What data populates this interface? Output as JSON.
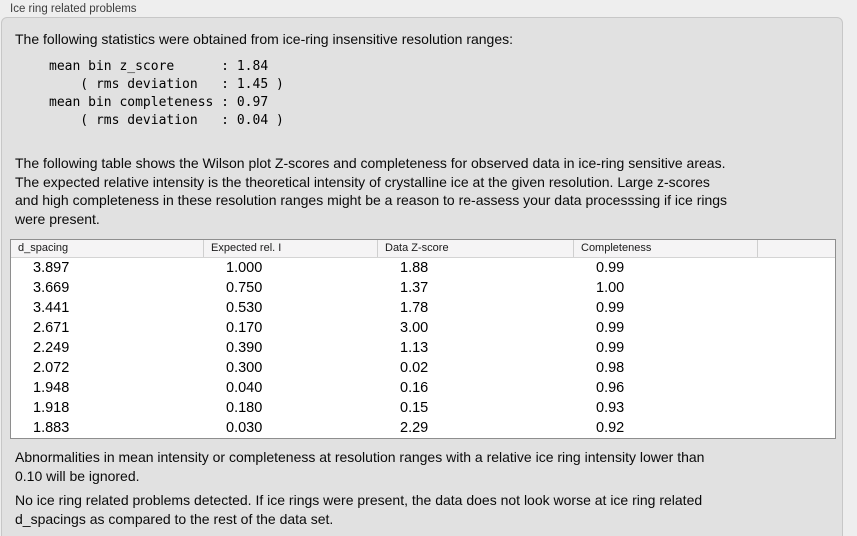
{
  "window": {
    "title": "Ice ring related problems"
  },
  "panel": {
    "intro": "The following statistics were obtained from ice-ring insensitive resolution ranges:",
    "stats_block": "mean bin z_score      : 1.84\n    ( rms deviation   : 1.45 )\nmean bin completeness : 0.97\n    ( rms deviation   : 0.04 )",
    "stats": {
      "mean_bin_z_score": "1.84",
      "z_score_rms_deviation": "1.45",
      "mean_bin_completeness": "0.97",
      "completeness_rms_deviation": "0.04"
    },
    "table_description": "The following table shows the Wilson plot Z-scores and completeness for observed data in ice-ring sensitive areas.\nThe expected relative intensity is the theoretical intensity of crystalline ice at the given resolution. Large z-scores\nand high completeness in these resolution ranges might be a reason to re-assess your data processsing if ice rings\nwere present.",
    "table": {
      "columns": [
        "d_spacing",
        "Expected rel. I",
        "Data Z-score",
        "Completeness",
        ""
      ],
      "rows": [
        [
          "3.897",
          "1.000",
          "1.88",
          "0.99"
        ],
        [
          "3.669",
          "0.750",
          "1.37",
          "1.00"
        ],
        [
          "3.441",
          "0.530",
          "1.78",
          "0.99"
        ],
        [
          "2.671",
          "0.170",
          "3.00",
          "0.99"
        ],
        [
          "2.249",
          "0.390",
          "1.13",
          "0.99"
        ],
        [
          "2.072",
          "0.300",
          "0.02",
          "0.98"
        ],
        [
          "1.948",
          "0.040",
          "0.16",
          "0.96"
        ],
        [
          "1.918",
          "0.180",
          "0.15",
          "0.93"
        ],
        [
          "1.883",
          "0.030",
          "2.29",
          "0.92"
        ]
      ]
    },
    "note_ignore": "Abnormalities in mean intensity or completeness at resolution ranges with a relative ice ring intensity lower than\n0.10 will be ignored.",
    "conclusion": "No ice ring related problems detected. If ice rings were present, the data does not look worse at ice ring related\nd_spacings as compared to the rest of the data set."
  },
  "colors": {
    "outer_background": "#eeeeee",
    "panel_background": "#e1e1e1",
    "panel_border": "#c7c7c7",
    "table_border": "#8e8e8e",
    "table_header_background": "#f5f4f5",
    "table_body_background": "#ffffff",
    "text": "#0a0a0a"
  }
}
